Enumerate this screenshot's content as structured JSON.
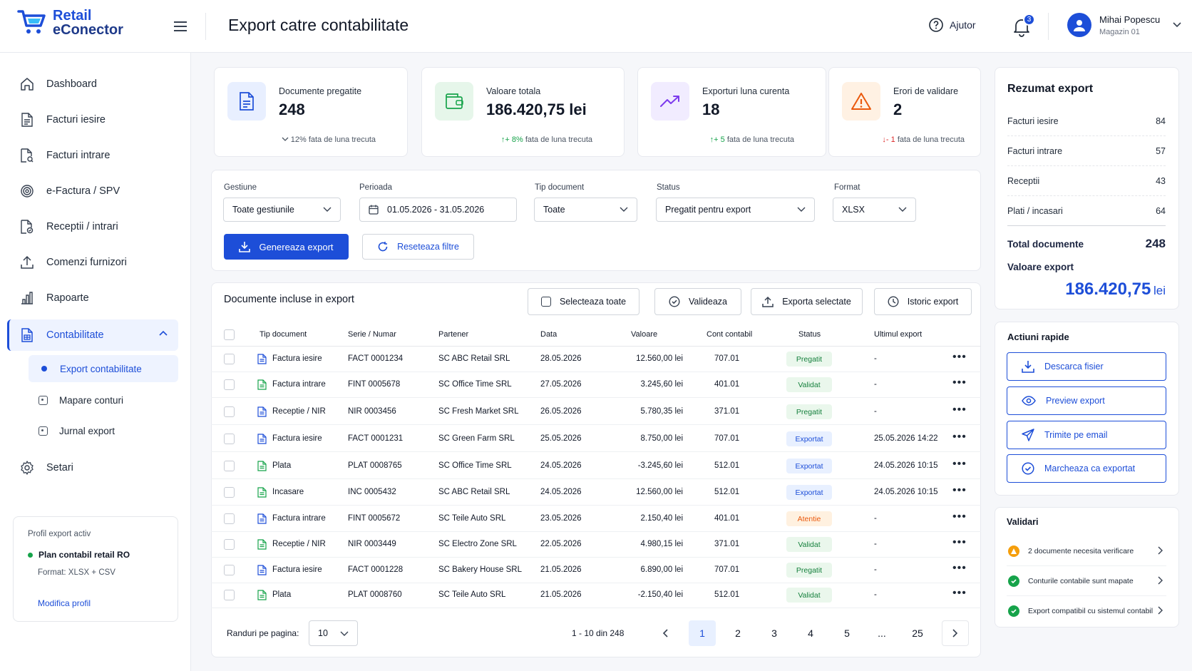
{
  "app": {
    "brand_line1": "Retail",
    "brand_line2": "eConector",
    "page_title": "Export catre contabilitate"
  },
  "header": {
    "help_label": "Ajutor",
    "notifications_count": "3",
    "user_name": "Mihai Popescu",
    "user_shop": "Magazin 01"
  },
  "sidebar": {
    "items": [
      {
        "label": "Dashboard",
        "icon": "home-icon"
      },
      {
        "label": "Facturi iesire",
        "icon": "document-icon"
      },
      {
        "label": "Facturi intrare",
        "icon": "document-search-icon"
      },
      {
        "label": "e-Factura / SPV",
        "icon": "fingerprint-icon"
      },
      {
        "label": "Receptii / intrari",
        "icon": "document-check-icon"
      },
      {
        "label": "Comenzi furnizori",
        "icon": "upload-icon"
      },
      {
        "label": "Rapoarte",
        "icon": "bar-chart-icon"
      },
      {
        "label": "Contabilitate",
        "icon": "ledger-icon"
      },
      {
        "label": "Setari",
        "icon": "gear-icon"
      }
    ],
    "sub_items": [
      {
        "label": "Export contabilitate"
      },
      {
        "label": "Mapare conturi"
      },
      {
        "label": "Jurnal export"
      }
    ],
    "profile": {
      "title": "Profil export activ",
      "name": "Plan contabil retail RO",
      "format": "Format: XLSX + CSV",
      "edit_link": "Modifica profil"
    }
  },
  "stats": [
    {
      "label": "Documente pregatite",
      "value": "248",
      "trend_arrow": "",
      "trend_value": "12%",
      "trend_text": "fata de luna trecuta",
      "icon": "document-icon",
      "color": "#1d4ed8",
      "bg": "#e8efff"
    },
    {
      "label": "Valoare totala",
      "value": "186.420,75 lei",
      "trend_arrow": "↑",
      "trend_value": "+ 8%",
      "trend_text": "fata de luna trecuta",
      "icon": "wallet-icon",
      "color": "#16a34a",
      "bg": "#e6f6ea"
    },
    {
      "label": "Exporturi luna curenta",
      "value": "18",
      "trend_arrow": "↑",
      "trend_value": "+ 5",
      "trend_text": "fata de luna trecuta",
      "icon": "trend-up-icon",
      "color": "#7c3aed",
      "bg": "#f1ecff"
    },
    {
      "label": "Erori de validare",
      "value": "2",
      "trend_arrow": "↓",
      "trend_value": "- 1",
      "trend_text": "fata de luna trecuta",
      "icon": "warning-icon",
      "color": "#ea580c",
      "bg": "#fff1e3"
    }
  ],
  "filters": {
    "gestiune": {
      "label": "Gestiune",
      "value": "Toate gestiunile"
    },
    "perioada": {
      "label": "Perioada",
      "value": "01.05.2026 - 31.05.2026"
    },
    "tip": {
      "label": "Tip document",
      "value": "Toate"
    },
    "status": {
      "label": "Status",
      "value": "Pregatit pentru export"
    },
    "format": {
      "label": "Format",
      "value": "XLSX"
    },
    "generate_label": "Genereaza export",
    "reset_label": "Reseteaza filtre"
  },
  "table": {
    "title": "Documente incluse in export",
    "actions": {
      "select_all": "Selecteaza toate",
      "validate": "Valideaza",
      "export_selected": "Exporta selectate",
      "history": "Istoric export"
    },
    "columns": [
      "Tip document",
      "Serie / Numar",
      "Partener",
      "Data",
      "Valoare",
      "Cont contabil",
      "Status",
      "Ultimul export"
    ],
    "rows": [
      {
        "tip": "Factura iesire",
        "serie": "FACT 0001234",
        "partener": "SC ABC Retail SRL",
        "data": "28.05.2026",
        "valoare": "12.560,00 lei",
        "cont": "707.01",
        "status": "Pregatit",
        "ultim": "-",
        "icolor": "#1d4ed8"
      },
      {
        "tip": "Factura intrare",
        "serie": "FINT 0005678",
        "partener": "SC Office Time SRL",
        "data": "27.05.2026",
        "valoare": "3.245,60 lei",
        "cont": "401.01",
        "status": "Validat",
        "ultim": "-",
        "icolor": "#16a34a"
      },
      {
        "tip": "Receptie / NIR",
        "serie": "NIR 0003456",
        "partener": "SC Fresh Market SRL",
        "data": "26.05.2026",
        "valoare": "5.780,35 lei",
        "cont": "371.01",
        "status": "Pregatit",
        "ultim": "-",
        "icolor": "#1d4ed8"
      },
      {
        "tip": "Factura iesire",
        "serie": "FACT 0001231",
        "partener": "SC Green Farm SRL",
        "data": "25.05.2026",
        "valoare": "8.750,00 lei",
        "cont": "707.01",
        "status": "Exportat",
        "ultim": "25.05.2026 14:22",
        "icolor": "#1d4ed8"
      },
      {
        "tip": "Plata",
        "serie": "PLAT 0008765",
        "partener": "SC Office Time SRL",
        "data": "24.05.2026",
        "valoare": "-3.245,60 lei",
        "cont": "512.01",
        "status": "Exportat",
        "ultim": "24.05.2026 10:15",
        "icolor": "#16a34a"
      },
      {
        "tip": "Incasare",
        "serie": "INC 0005432",
        "partener": "SC ABC Retail SRL",
        "data": "24.05.2026",
        "valoare": "12.560,00 lei",
        "cont": "512.01",
        "status": "Exportat",
        "ultim": "24.05.2026 10:15",
        "icolor": "#16a34a"
      },
      {
        "tip": "Factura intrare",
        "serie": "FINT 0005672",
        "partener": "SC Teile Auto SRL",
        "data": "23.05.2026",
        "valoare": "2.150,40 lei",
        "cont": "401.01",
        "status": "Atentie",
        "ultim": "-",
        "icolor": "#1d4ed8"
      },
      {
        "tip": "Receptie / NIR",
        "serie": "NIR 0003449",
        "partener": "SC Electro Zone SRL",
        "data": "22.05.2026",
        "valoare": "4.980,15 lei",
        "cont": "371.01",
        "status": "Validat",
        "ultim": "-",
        "icolor": "#16a34a"
      },
      {
        "tip": "Factura iesire",
        "serie": "FACT 0001228",
        "partener": "SC Bakery House SRL",
        "data": "21.05.2026",
        "valoare": "6.890,00 lei",
        "cont": "707.01",
        "status": "Pregatit",
        "ultim": "-",
        "icolor": "#1d4ed8"
      },
      {
        "tip": "Plata",
        "serie": "PLAT 0008760",
        "partener": "SC Teile Auto SRL",
        "data": "21.05.2026",
        "valoare": "-2.150,40 lei",
        "cont": "512.01",
        "status": "Validat",
        "ultim": "-",
        "icolor": "#16a34a"
      }
    ]
  },
  "pagination": {
    "rows_label": "Randuri pe pagina:",
    "rows_value": "10",
    "range": "1 - 10 din 248",
    "pages": [
      "1",
      "2",
      "3",
      "4",
      "5",
      "...",
      "25"
    ]
  },
  "summary": {
    "title": "Rezumat export",
    "rows": [
      {
        "label": "Facturi iesire",
        "value": "84"
      },
      {
        "label": "Facturi intrare",
        "value": "57"
      },
      {
        "label": "Receptii",
        "value": "43"
      },
      {
        "label": "Plati / incasari",
        "value": "64"
      }
    ],
    "total_label": "Total documente",
    "total_value": "248",
    "value_label": "Valoare export",
    "value_amount": "186.420,75",
    "value_unit": "lei"
  },
  "quick_actions": {
    "title": "Actiuni rapide",
    "items": [
      {
        "label": "Descarca fisier",
        "icon": "download-icon"
      },
      {
        "label": "Preview export",
        "icon": "eye-icon"
      },
      {
        "label": "Trimite pe email",
        "icon": "send-icon"
      },
      {
        "label": "Marcheaza ca exportat",
        "icon": "check-circle-icon"
      }
    ]
  },
  "validations": {
    "title": "Validari",
    "items": [
      {
        "text": "2 documente necesita verificare",
        "color": "#f59e0b"
      },
      {
        "text": "Conturile contabile sunt mapate",
        "color": "#16a34a"
      },
      {
        "text": "Export compatibil cu sistemul contabil",
        "color": "#16a34a"
      }
    ]
  }
}
